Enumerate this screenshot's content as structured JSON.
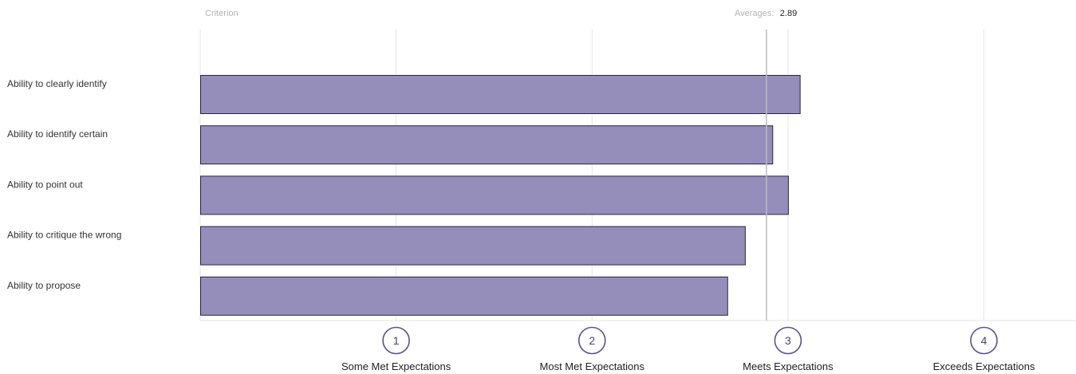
{
  "header": {
    "criterion_label": "Criterion",
    "averages_label": "Averages:",
    "averages_value": "2.89"
  },
  "chart_data": {
    "type": "bar",
    "orientation": "horizontal",
    "categories": [
      "Ability to clearly identify",
      "Ability to identify certain",
      "Ability to point out",
      "Ability to critique the wrong",
      "Ability to propose"
    ],
    "values": [
      3.06,
      2.92,
      3.0,
      2.78,
      2.69
    ],
    "average": 2.89,
    "xlim": [
      0,
      4.47
    ],
    "ticks": [
      {
        "value": 1,
        "number": "1",
        "label": "Some Met Expectations"
      },
      {
        "value": 2,
        "number": "2",
        "label": "Most Met Expectations"
      },
      {
        "value": 3,
        "number": "3",
        "label": "Meets Expectations"
      },
      {
        "value": 4,
        "number": "4",
        "label": "Exceeds Expectations"
      }
    ],
    "grid": true,
    "colors": {
      "bar_fill": "#958dba",
      "bar_stroke": "#2a2445",
      "average_line": "#bdbdbd",
      "grid": "#e6e6e6",
      "tick_circle": "#5a4f8f"
    }
  }
}
